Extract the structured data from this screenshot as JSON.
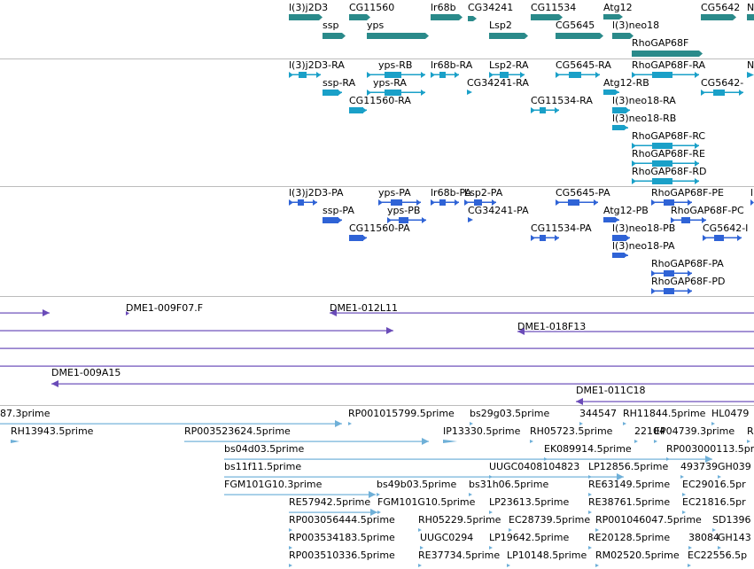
{
  "colors": {
    "gene": "#2a8a8a",
    "transcript": "#1aa0c8",
    "protein": "#2f63d6",
    "clone": "#6a4bb8",
    "est": "#6fb0d8",
    "divider": "#bcbcbc"
  },
  "tracks": [
    {
      "id": "gene",
      "features": [
        {
          "label": "l(3)j2D3"
        },
        {
          "label": "CG11560"
        },
        {
          "label": "lr68b"
        },
        {
          "label": "CG34241"
        },
        {
          "label": "CG11534"
        },
        {
          "label": "Atg12"
        },
        {
          "label": "CG5642"
        },
        {
          "label": "N"
        },
        {
          "label": "ssp"
        },
        {
          "label": "yps"
        },
        {
          "label": "Lsp2"
        },
        {
          "label": "CG5645"
        },
        {
          "label": "l(3)neo18"
        },
        {
          "label": "RhoGAP68F"
        }
      ]
    },
    {
      "id": "transcript",
      "features": [
        {
          "label": "l(3)j2D3-RA"
        },
        {
          "label": "yps-RB"
        },
        {
          "label": "lr68b-RA"
        },
        {
          "label": "Lsp2-RA"
        },
        {
          "label": "CG5645-RA"
        },
        {
          "label": "RhoGAP68F-RA"
        },
        {
          "label": "N"
        },
        {
          "label": "ssp-RA"
        },
        {
          "label": "yps-RA"
        },
        {
          "label": "CG34241-RA"
        },
        {
          "label": "Atg12-RB"
        },
        {
          "label": "CG5642-"
        },
        {
          "label": "CG11560-RA"
        },
        {
          "label": "CG11534-RA"
        },
        {
          "label": "l(3)neo18-RA"
        },
        {
          "label": "l(3)neo18-RB"
        },
        {
          "label": "RhoGAP68F-RC"
        },
        {
          "label": "RhoGAP68F-RE"
        },
        {
          "label": "RhoGAP68F-RD"
        }
      ]
    },
    {
      "id": "protein",
      "features": [
        {
          "label": "l(3)j2D3-PA"
        },
        {
          "label": "yps-PA"
        },
        {
          "label": "lr68b-PA"
        },
        {
          "label": "Lsp2-PA"
        },
        {
          "label": "CG5645-PA"
        },
        {
          "label": "RhoGAP68F-PE"
        },
        {
          "label": "l"
        },
        {
          "label": "ssp-PA"
        },
        {
          "label": "yps-PB"
        },
        {
          "label": "CG34241-PA"
        },
        {
          "label": "Atg12-PB"
        },
        {
          "label": "RhoGAP68F-PC"
        },
        {
          "label": "CG11560-PA"
        },
        {
          "label": "CG11534-PA"
        },
        {
          "label": "l(3)neo18-PB"
        },
        {
          "label": "CG5642-I"
        },
        {
          "label": "l(3)neo18-PA"
        },
        {
          "label": "RhoGAP68F-PA"
        },
        {
          "label": "RhoGAP68F-PD"
        }
      ]
    },
    {
      "id": "clone",
      "features": [
        {
          "label": ""
        },
        {
          "label": "DME1-009F07.F"
        },
        {
          "label": "DME1-012L11"
        },
        {
          "label": ""
        },
        {
          "label": "DME1-018F13"
        },
        {
          "label": ""
        },
        {
          "label": ""
        },
        {
          "label": "DME1-009A15"
        },
        {
          "label": "DME1-011C18"
        }
      ]
    },
    {
      "id": "est",
      "features": [
        {
          "label": "87.3prime"
        },
        {
          "label": "RP001015799.5prime"
        },
        {
          "label": "bs29g03.5prime"
        },
        {
          "label": "344547"
        },
        {
          "label": "RH11844.5prime"
        },
        {
          "label": "HL0479"
        },
        {
          "label": "RH13943.5prime"
        },
        {
          "label": "RP003523624.5prime"
        },
        {
          "label": "IP13330.5prime"
        },
        {
          "label": "RH05723.5prime"
        },
        {
          "label": "22104"
        },
        {
          "label": "EP04739.3prime"
        },
        {
          "label": "R"
        },
        {
          "label": "bs04d03.5prime"
        },
        {
          "label": "EK089914.5prime"
        },
        {
          "label": "RP003000113.5prime"
        },
        {
          "label": "bs11f11.5prime"
        },
        {
          "label": "UUGC0408104823"
        },
        {
          "label": "LP12856.5prime"
        },
        {
          "label": "493739"
        },
        {
          "label": "GH039"
        },
        {
          "label": "FGM101G10.3prime"
        },
        {
          "label": "bs49b03.5prime"
        },
        {
          "label": "bs31h06.5prime"
        },
        {
          "label": "RE63149.5prime"
        },
        {
          "label": "EC29016.5pr"
        },
        {
          "label": "RE57942.5prime"
        },
        {
          "label": "FGM101G10.5prime"
        },
        {
          "label": "LP23613.5prime"
        },
        {
          "label": "RE38761.5prime"
        },
        {
          "label": "EC21816.5pr"
        },
        {
          "label": "RP003056444.5prime"
        },
        {
          "label": "RH05229.5prime"
        },
        {
          "label": "EC28739.5prime"
        },
        {
          "label": "RP001046047.5prime"
        },
        {
          "label": "SD1396"
        },
        {
          "label": "RP003534183.5prime"
        },
        {
          "label": "UUGC0294"
        },
        {
          "label": "LP19642.5prime"
        },
        {
          "label": "RE20128.5prime"
        },
        {
          "label": "38084"
        },
        {
          "label": "GH143"
        },
        {
          "label": "RP003510336.5prime"
        },
        {
          "label": "RE37734.5prime"
        },
        {
          "label": "LP10148.5prime"
        },
        {
          "label": "RM02520.5prime"
        },
        {
          "label": "EC22556.5p"
        }
      ]
    }
  ]
}
